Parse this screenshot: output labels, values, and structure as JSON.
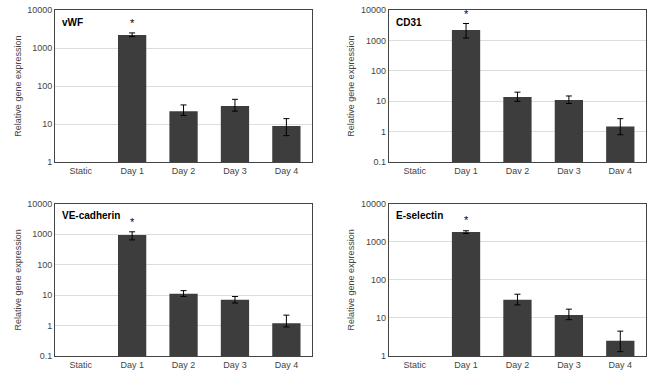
{
  "chart_data": [
    {
      "type": "bar",
      "title": "vWF",
      "categories": [
        "Static",
        "Day 1",
        "Day 2",
        "Day 3",
        "Day 4"
      ],
      "values": [
        null,
        2200,
        22,
        30,
        9
      ],
      "errors_up": [
        null,
        300,
        10,
        15,
        5
      ],
      "errors_down": [
        null,
        200,
        5,
        8,
        4
      ],
      "color": "#3d3d3d",
      "ylabel": "Relative gene expression",
      "log": "y",
      "ylim": [
        1,
        10000
      ],
      "yticks": [
        1,
        10,
        100,
        1000,
        10000
      ],
      "grid": true,
      "annotations": [
        {
          "text": "*",
          "x": "Day 1",
          "y": 2875
        }
      ]
    },
    {
      "type": "bar",
      "title": "CD31",
      "categories": [
        "Static",
        "Day 1",
        "Dav 2",
        "Dav 3",
        "Dav 4"
      ],
      "values": [
        null,
        2200,
        14,
        11,
        1.5
      ],
      "errors_up": [
        null,
        1400,
        6,
        4,
        1.2
      ],
      "errors_down": [
        null,
        1000,
        4,
        2.5,
        0.7
      ],
      "color": "#3d3d3d",
      "ylabel": "Relative gene expression",
      "log": "y",
      "ylim": [
        0.1,
        10000
      ],
      "yticks": [
        0.1,
        1,
        10,
        100,
        1000,
        10000
      ],
      "grid": true,
      "annotations": [
        {
          "text": "*",
          "x": "Day 1",
          "y": 4140
        }
      ]
    },
    {
      "type": "bar",
      "title": "VE-cadherin",
      "categories": [
        "Static",
        "Day 1",
        "Day 2",
        "Day 3",
        "Day 4"
      ],
      "values": [
        null,
        950,
        11,
        7,
        1.2
      ],
      "errors_up": [
        null,
        250,
        3,
        2,
        1.0
      ],
      "errors_down": [
        null,
        300,
        2,
        1.5,
        0.3
      ],
      "color": "#3d3d3d",
      "ylabel": "Relative gene expression",
      "log": "y",
      "ylim": [
        0.1,
        10000
      ],
      "yticks": [
        0.1,
        1,
        10,
        100,
        1000,
        10000
      ],
      "grid": true,
      "annotations": [
        {
          "text": "*",
          "x": "Day 1",
          "y": 1380
        }
      ]
    },
    {
      "type": "bar",
      "title": "E-selectin",
      "categories": [
        "Static",
        "Day 1",
        "Day 2",
        "Day 3",
        "Day 4"
      ],
      "values": [
        null,
        1800,
        30,
        12,
        2.5
      ],
      "errors_up": [
        null,
        150,
        12,
        5,
        2.0
      ],
      "errors_down": [
        null,
        150,
        8,
        3,
        1.2
      ],
      "color": "#3d3d3d",
      "ylabel": "Relative gene expression",
      "log": "y",
      "ylim": [
        1,
        10000
      ],
      "yticks": [
        1,
        10,
        100,
        1000,
        10000
      ],
      "grid": true,
      "annotations": [
        {
          "text": "*",
          "x": "Day 1",
          "y": 2242.5
        }
      ]
    }
  ]
}
